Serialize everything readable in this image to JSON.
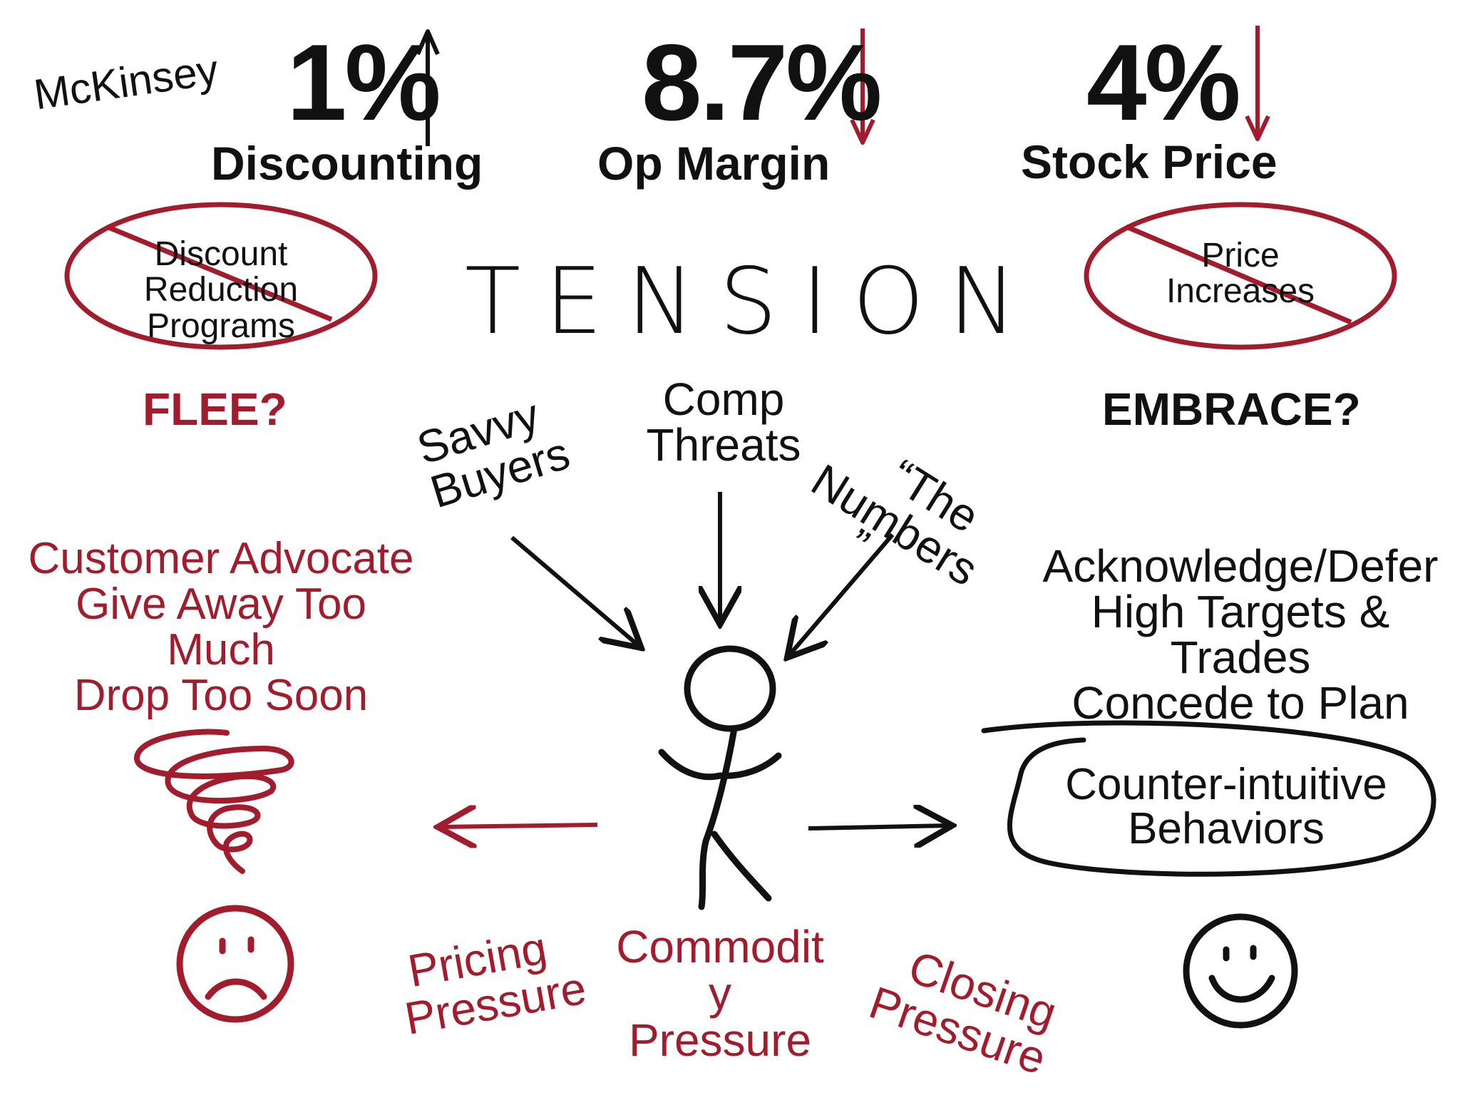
{
  "source_label": "McKinsey",
  "metrics": [
    {
      "value": "1%",
      "label": "Discounting",
      "direction": "up"
    },
    {
      "value": "8.7%",
      "label": "Op Margin",
      "direction": "down"
    },
    {
      "value": "4%",
      "label": "Stock Price",
      "direction": "down"
    }
  ],
  "crossed_out": {
    "left": [
      "Discount",
      "Reduction",
      "Programs"
    ],
    "right": [
      "Price",
      "Increases"
    ]
  },
  "center_word": "TENSION",
  "questions": {
    "left": "FLEE?",
    "right": "EMBRACE?"
  },
  "forces": {
    "savvy_buyers": [
      "Savvy",
      "Buyers"
    ],
    "comp_threats": [
      "Comp",
      "Threats"
    ],
    "the_numbers": [
      "“The",
      "Numbers",
      "”"
    ]
  },
  "flee_behaviors": [
    "Customer Advocate",
    "Give Away Too",
    "Much",
    "Drop Too Soon"
  ],
  "embrace_behaviors": [
    "Acknowledge/Defer",
    "High Targets &",
    "Trades",
    "Concede to Plan"
  ],
  "counter_intuitive": [
    "Counter-intuitive",
    "Behaviors"
  ],
  "pressures": {
    "pricing": [
      "Pricing",
      "Pressure"
    ],
    "commodity": [
      "Commodit",
      "y",
      "Pressure"
    ],
    "closing": [
      "Closing",
      "Pressure"
    ]
  },
  "colors": {
    "accent_red": "#a11d2e",
    "ink": "#111111"
  },
  "icons": {
    "left_face": "sad-face-icon",
    "right_face": "happy-face-icon",
    "spiral": "spiral-icon"
  }
}
